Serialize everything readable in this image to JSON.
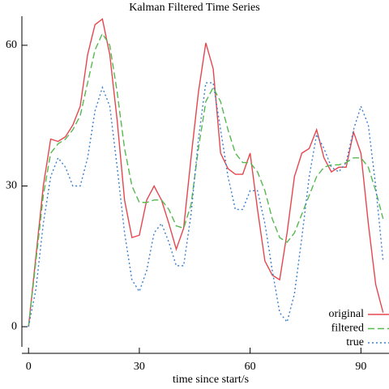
{
  "chart_data": {
    "type": "line",
    "title": "Kalman Filtered Time Series",
    "xlabel": "time since start/s",
    "x": [
      0,
      2,
      4,
      6,
      8,
      10,
      12,
      14,
      16,
      18,
      20,
      22,
      24,
      26,
      28,
      30,
      32,
      34,
      36,
      38,
      40,
      42,
      44,
      46,
      48,
      50,
      52,
      54,
      56,
      58,
      60,
      62,
      64,
      66,
      68,
      70,
      72,
      74,
      76,
      78,
      80,
      82,
      84,
      86,
      88,
      90,
      92,
      94,
      96
    ],
    "series": [
      {
        "name": "original",
        "color": "#e5474f",
        "dash": "solid",
        "values": [
          0,
          15,
          30,
          40,
          39.5,
          40.5,
          43,
          47,
          58,
          64.4,
          65.6,
          58,
          44,
          27,
          19,
          19.5,
          27,
          30,
          27,
          22,
          16.5,
          21,
          36,
          50,
          60.5,
          55,
          37,
          33.7,
          32.5,
          32.5,
          37,
          25,
          14,
          11,
          10,
          20,
          32,
          37,
          38,
          42,
          36,
          33,
          34,
          34,
          41.5,
          37,
          22,
          9,
          3
        ]
      },
      {
        "name": "filtered",
        "color": "#55b94f",
        "dash": "dashed",
        "values": [
          0,
          14,
          28,
          37,
          39,
          40,
          42,
          45,
          52,
          59,
          62.5,
          60,
          50,
          38,
          30,
          26.5,
          26.5,
          27,
          27,
          25,
          21.5,
          21,
          26,
          38,
          48,
          51,
          48,
          42,
          37,
          35,
          35,
          33,
          29,
          23,
          19,
          18,
          20,
          24,
          28,
          32,
          34,
          34.5,
          34.5,
          35,
          36,
          36,
          34,
          29,
          23
        ]
      },
      {
        "name": "true",
        "color": "#3a7fd0",
        "dash": "dotted",
        "values": [
          0,
          8,
          22,
          32,
          36,
          34,
          30,
          30,
          36,
          46,
          51,
          47,
          34,
          20,
          10,
          7.5,
          12,
          20,
          22,
          18,
          13,
          13,
          24,
          40,
          52,
          52,
          42,
          32,
          25,
          25,
          29,
          29,
          22,
          12,
          3,
          1,
          7,
          19,
          32,
          41,
          38,
          34,
          33,
          35,
          42,
          47,
          43,
          30,
          14
        ]
      }
    ],
    "xlim": [
      -1.8,
      97.6
    ],
    "ylim": [
      -4.3,
      66.2
    ],
    "xticks": [
      0,
      30,
      60,
      90
    ],
    "yticks": [
      0,
      30,
      60
    ],
    "legend": "lower right"
  }
}
